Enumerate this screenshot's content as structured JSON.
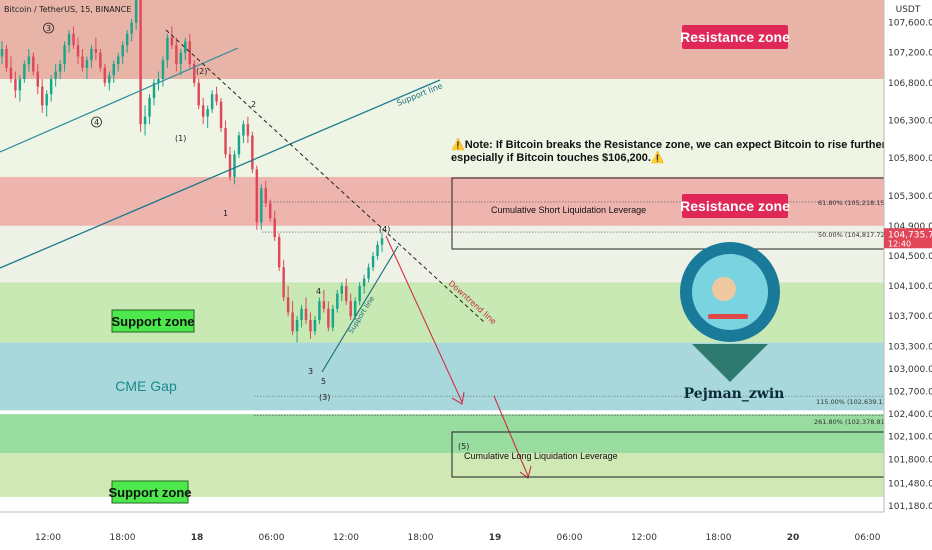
{
  "title": "Bitcoin / TetherUS, 15, BINANCE",
  "currency": "USDT",
  "chart_data": {
    "type": "candlestick",
    "title": "Bitcoin / TetherUS, 15, BINANCE",
    "ylim": [
      101100,
      107900
    ],
    "y_ticks": [
      107600,
      107200,
      106800,
      106300,
      105800,
      105300,
      104900,
      104500,
      104100,
      103700,
      103300,
      103000,
      102700,
      102400,
      102100,
      101800,
      101480,
      101180
    ],
    "y_tick_labels": [
      "107,600.00",
      "107,200.00",
      "106,800.00",
      "106,300.00",
      "105,800.00",
      "105,300.00",
      "104,900.00",
      "104,500.00",
      "104,100.00",
      "103,700.00",
      "103,300.00",
      "103,000.00",
      "102,700.00",
      "102,400.00",
      "102,100.00",
      "101,800.00",
      "101,480.00",
      "101,180.00"
    ],
    "x_ticks": [
      "12:00",
      "18:00",
      "18",
      "06:00",
      "12:00",
      "18:00",
      "19",
      "06:00",
      "12:00",
      "18:00",
      "20",
      "06:00"
    ],
    "current_price": "104,735.70",
    "countdown": "12:40",
    "zones": [
      {
        "label": "Resistance zone",
        "from": 106850,
        "to": 107900,
        "color": "#e8b4a8"
      },
      {
        "label": "",
        "from": 105550,
        "to": 106850,
        "color": "#eef5e4"
      },
      {
        "label": "Resistance zone",
        "from": 104900,
        "to": 105550,
        "color": "#eeb4ae"
      },
      {
        "label": "",
        "from": 104150,
        "to": 104900,
        "color": "#eef2e6"
      },
      {
        "label": "Support zone",
        "from": 103350,
        "to": 104150,
        "color": "#c8e8b4"
      },
      {
        "label": "CME Gap",
        "from": 102450,
        "to": 103350,
        "color": "#a8d8dc"
      },
      {
        "label": "",
        "from": 101880,
        "to": 102400,
        "color": "#98dca0"
      },
      {
        "label": "Support zone",
        "from": 101300,
        "to": 101880,
        "color": "#cfe8b4"
      }
    ],
    "fib_levels": [
      {
        "label": "61.80% (105,218.15)",
        "value": 105218.15
      },
      {
        "label": "50.00% (104,817.72)",
        "value": 104817.72
      },
      {
        "label": "115.00% (102,639.12)",
        "value": 102639.12
      },
      {
        "label": "261.80% (102,378.81)",
        "value": 102378.81
      }
    ],
    "note": "⚠️Note: If Bitcoin breaks the Resistance zone, we can expect Bitcoin to rise further, especially if Bitcoin touches $106,200.⚠️",
    "note_line1": "⚠️Note: If Bitcoin breaks the Resistance zone, we can expect Bitcoin to rise further,",
    "note_line2": "especially if Bitcoin touches $106,200.⚠️",
    "boxes": [
      {
        "label": "Cumulative Short Liquidation Leverage",
        "from": 104700,
        "to": 105650
      },
      {
        "label": "Cumulative Long Liquidation Leverage",
        "from": 101750,
        "to": 102400
      }
    ],
    "line_labels": [
      "Support line",
      "Downtrend line",
      "Support line"
    ],
    "wave_labels": [
      "3",
      "4",
      "(2)",
      "(1)",
      "2",
      "1",
      "(4)",
      "4",
      "3",
      "5",
      "(3)",
      "(5)"
    ],
    "brand": "Pejman_zwin",
    "candles": [
      [
        107150,
        107350,
        107050,
        107250
      ],
      [
        107250,
        107300,
        106950,
        107000
      ],
      [
        107000,
        107150,
        106800,
        106850
      ],
      [
        106850,
        106950,
        106600,
        106700
      ],
      [
        106700,
        106900,
        106550,
        106850
      ],
      [
        106850,
        107100,
        106800,
        107050
      ],
      [
        107050,
        107250,
        106950,
        107150
      ],
      [
        107150,
        107200,
        106900,
        106950
      ],
      [
        106950,
        107050,
        106650,
        106750
      ],
      [
        106750,
        106850,
        106400,
        106500
      ],
      [
        106500,
        106700,
        106350,
        106650
      ],
      [
        106650,
        106900,
        106550,
        106850
      ],
      [
        106850,
        107050,
        106750,
        106950
      ],
      [
        106950,
        107100,
        106850,
        107050
      ],
      [
        107050,
        107350,
        106950,
        107300
      ],
      [
        107300,
        107500,
        107200,
        107450
      ],
      [
        107450,
        107550,
        107250,
        107300
      ],
      [
        107300,
        107400,
        107050,
        107150
      ],
      [
        107150,
        107250,
        106950,
        107000
      ],
      [
        107000,
        107150,
        106850,
        107100
      ],
      [
        107100,
        107300,
        107000,
        107250
      ],
      [
        107250,
        107400,
        107100,
        107200
      ],
      [
        107200,
        107250,
        106950,
        107000
      ],
      [
        107000,
        107050,
        106750,
        106800
      ],
      [
        106800,
        106950,
        106700,
        106900
      ],
      [
        106900,
        107100,
        106800,
        107050
      ],
      [
        107050,
        107200,
        106950,
        107150
      ],
      [
        107150,
        107350,
        107050,
        107300
      ],
      [
        107300,
        107500,
        107200,
        107450
      ],
      [
        107450,
        107650,
        107350,
        107600
      ],
      [
        107600,
        107950,
        107500,
        107900
      ],
      [
        107900,
        107950,
        106150,
        106250
      ],
      [
        106250,
        106500,
        106100,
        106350
      ],
      [
        106350,
        106650,
        106250,
        106600
      ],
      [
        106600,
        106850,
        106500,
        106800
      ],
      [
        106800,
        106950,
        106700,
        106850
      ],
      [
        106850,
        107150,
        106750,
        107100
      ],
      [
        107100,
        107450,
        107000,
        107400
      ],
      [
        107400,
        107550,
        107250,
        107300
      ],
      [
        107300,
        107400,
        106950,
        107050
      ],
      [
        107050,
        107250,
        106900,
        107200
      ],
      [
        107200,
        107400,
        107100,
        107350
      ],
      [
        107350,
        107450,
        107000,
        107050
      ],
      [
        107050,
        107100,
        106750,
        106800
      ],
      [
        106800,
        106850,
        106450,
        106500
      ],
      [
        106500,
        106600,
        106250,
        106350
      ],
      [
        106350,
        106500,
        106200,
        106450
      ],
      [
        106450,
        106700,
        106400,
        106650
      ],
      [
        106650,
        106750,
        106500,
        106550
      ],
      [
        106550,
        106600,
        106150,
        106200
      ],
      [
        106200,
        106300,
        105800,
        105850
      ],
      [
        105850,
        105950,
        105500,
        105550
      ],
      [
        105550,
        105900,
        105450,
        105850
      ],
      [
        105850,
        106150,
        105800,
        106100
      ],
      [
        106100,
        106300,
        106000,
        106250
      ],
      [
        106250,
        106350,
        106000,
        106100
      ],
      [
        106100,
        106150,
        105600,
        105650
      ],
      [
        105650,
        105700,
        104850,
        104950
      ],
      [
        104950,
        105450,
        104850,
        105400
      ],
      [
        105400,
        105500,
        105150,
        105200
      ],
      [
        105200,
        105250,
        104950,
        105000
      ],
      [
        105000,
        105100,
        104700,
        104750
      ],
      [
        104750,
        104800,
        104300,
        104350
      ],
      [
        104350,
        104450,
        103900,
        103950
      ],
      [
        103950,
        104100,
        103700,
        103750
      ],
      [
        103750,
        103900,
        103450,
        103500
      ],
      [
        103500,
        103700,
        103350,
        103650
      ],
      [
        103650,
        103850,
        103550,
        103800
      ],
      [
        103800,
        103950,
        103600,
        103650
      ],
      [
        103650,
        103750,
        103400,
        103500
      ],
      [
        103500,
        103700,
        103450,
        103650
      ],
      [
        103650,
        103950,
        103600,
        103900
      ],
      [
        103900,
        104050,
        103750,
        103800
      ],
      [
        103800,
        103900,
        103500,
        103550
      ],
      [
        103550,
        103850,
        103500,
        103800
      ],
      [
        103800,
        104050,
        103750,
        104000
      ],
      [
        104000,
        104150,
        103900,
        104100
      ],
      [
        104100,
        104200,
        103850,
        103900
      ],
      [
        103900,
        104000,
        103650,
        103700
      ],
      [
        103700,
        103950,
        103650,
        103900
      ],
      [
        103900,
        104150,
        103850,
        104100
      ],
      [
        104100,
        104250,
        104000,
        104200
      ],
      [
        104200,
        104400,
        104150,
        104350
      ],
      [
        104350,
        104550,
        104300,
        104500
      ],
      [
        104500,
        104700,
        104450,
        104650
      ],
      [
        104650,
        104800,
        104550,
        104735
      ]
    ]
  }
}
